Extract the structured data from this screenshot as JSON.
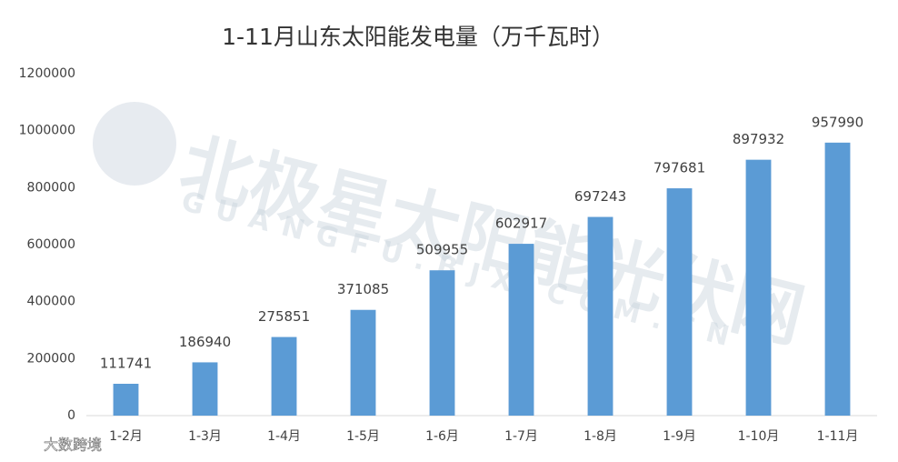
{
  "chart_data": {
    "type": "bar",
    "title": "1-11月山东太阳能发电量（万千瓦时）",
    "categories": [
      "1-2月",
      "1-3月",
      "1-4月",
      "1-5月",
      "1-6月",
      "1-7月",
      "1-8月",
      "1-9月",
      "1-10月",
      "1-11月"
    ],
    "values": [
      111741,
      186940,
      275851,
      371085,
      509955,
      602917,
      697243,
      797681,
      897932,
      957990
    ],
    "color": "#5b9bd5",
    "ylim": [
      0,
      1200000
    ],
    "yticks": [
      0,
      200000,
      400000,
      600000,
      800000,
      1000000,
      1200000
    ],
    "grid": false,
    "data_labels": true
  },
  "watermark": "北极星太阳能光伏网",
  "watermark_url": "GUANGFU.BJX.COM.CN",
  "source_badge": "大数跨境"
}
